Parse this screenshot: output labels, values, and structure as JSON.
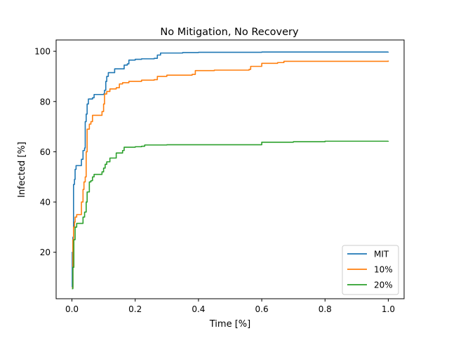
{
  "chart_data": {
    "type": "line",
    "title": "No Mitigation, No Recovery",
    "xlabel": "Time [%]",
    "ylabel": "Infected [%]",
    "xlim": [
      -0.05,
      1.05
    ],
    "ylim": [
      1.5,
      104.5
    ],
    "xticks": [
      0.0,
      0.2,
      0.4,
      0.6,
      0.8,
      1.0
    ],
    "xtick_labels": [
      "0.0",
      "0.2",
      "0.4",
      "0.6",
      "0.8",
      "1.0"
    ],
    "yticks": [
      20,
      40,
      60,
      80,
      100
    ],
    "ytick_labels": [
      "20",
      "40",
      "60",
      "80",
      "100"
    ],
    "grid": false,
    "legend_position": "lower-right",
    "series": [
      {
        "name": "MIT",
        "color": "#1f77b4",
        "points": [
          [
            0.0,
            6
          ],
          [
            0.001,
            20
          ],
          [
            0.003,
            26
          ],
          [
            0.005,
            47
          ],
          [
            0.008,
            49
          ],
          [
            0.01,
            53
          ],
          [
            0.013,
            54.5
          ],
          [
            0.025,
            54.5
          ],
          [
            0.03,
            57
          ],
          [
            0.035,
            60.5
          ],
          [
            0.04,
            61.5
          ],
          [
            0.042,
            72
          ],
          [
            0.045,
            75
          ],
          [
            0.048,
            79
          ],
          [
            0.052,
            81
          ],
          [
            0.065,
            81.5
          ],
          [
            0.07,
            82.8
          ],
          [
            0.1,
            83
          ],
          [
            0.103,
            84.5
          ],
          [
            0.107,
            88
          ],
          [
            0.11,
            90
          ],
          [
            0.115,
            91.5
          ],
          [
            0.13,
            91.5
          ],
          [
            0.135,
            93
          ],
          [
            0.16,
            93
          ],
          [
            0.165,
            94.5
          ],
          [
            0.175,
            95
          ],
          [
            0.18,
            96.5
          ],
          [
            0.2,
            96.8
          ],
          [
            0.22,
            97
          ],
          [
            0.26,
            97.2
          ],
          [
            0.27,
            98.5
          ],
          [
            0.28,
            99.3
          ],
          [
            0.35,
            99.5
          ],
          [
            0.4,
            99.6
          ],
          [
            0.6,
            99.7
          ],
          [
            1.0,
            99.8
          ]
        ]
      },
      {
        "name": "10%",
        "color": "#ff7f0e",
        "points": [
          [
            0.0,
            6
          ],
          [
            0.003,
            25
          ],
          [
            0.005,
            30
          ],
          [
            0.008,
            32
          ],
          [
            0.01,
            34
          ],
          [
            0.015,
            35
          ],
          [
            0.025,
            35
          ],
          [
            0.03,
            40
          ],
          [
            0.035,
            45
          ],
          [
            0.038,
            48
          ],
          [
            0.042,
            50
          ],
          [
            0.045,
            60
          ],
          [
            0.048,
            69
          ],
          [
            0.055,
            71
          ],
          [
            0.06,
            72
          ],
          [
            0.065,
            74.5
          ],
          [
            0.09,
            74.5
          ],
          [
            0.095,
            76
          ],
          [
            0.1,
            79
          ],
          [
            0.103,
            83
          ],
          [
            0.11,
            84
          ],
          [
            0.12,
            85
          ],
          [
            0.14,
            85.5
          ],
          [
            0.15,
            87
          ],
          [
            0.16,
            87.5
          ],
          [
            0.18,
            88
          ],
          [
            0.2,
            88
          ],
          [
            0.22,
            88.5
          ],
          [
            0.26,
            88.7
          ],
          [
            0.27,
            90
          ],
          [
            0.3,
            90.5
          ],
          [
            0.38,
            90.8
          ],
          [
            0.39,
            92.3
          ],
          [
            0.45,
            92.5
          ],
          [
            0.56,
            92.8
          ],
          [
            0.565,
            94
          ],
          [
            0.6,
            95.2
          ],
          [
            0.65,
            95.5
          ],
          [
            0.67,
            96
          ],
          [
            1.0,
            96.3
          ]
        ]
      },
      {
        "name": "20%",
        "color": "#2ca02c",
        "points": [
          [
            0.0,
            5.5
          ],
          [
            0.003,
            14
          ],
          [
            0.006,
            25
          ],
          [
            0.01,
            30
          ],
          [
            0.015,
            31.5
          ],
          [
            0.03,
            31.5
          ],
          [
            0.035,
            34
          ],
          [
            0.04,
            36
          ],
          [
            0.045,
            40
          ],
          [
            0.048,
            44
          ],
          [
            0.055,
            48
          ],
          [
            0.06,
            48.5
          ],
          [
            0.065,
            50
          ],
          [
            0.07,
            51
          ],
          [
            0.09,
            51
          ],
          [
            0.095,
            52
          ],
          [
            0.1,
            53.5
          ],
          [
            0.105,
            55
          ],
          [
            0.11,
            56
          ],
          [
            0.12,
            57.5
          ],
          [
            0.14,
            59.5
          ],
          [
            0.16,
            60.5
          ],
          [
            0.165,
            61.8
          ],
          [
            0.2,
            62
          ],
          [
            0.22,
            62.2
          ],
          [
            0.23,
            62.7
          ],
          [
            0.3,
            62.8
          ],
          [
            0.4,
            62.8
          ],
          [
            0.5,
            62.8
          ],
          [
            0.59,
            62.8
          ],
          [
            0.6,
            63.8
          ],
          [
            0.7,
            64
          ],
          [
            0.8,
            64.2
          ],
          [
            1.0,
            64.3
          ]
        ]
      }
    ]
  }
}
